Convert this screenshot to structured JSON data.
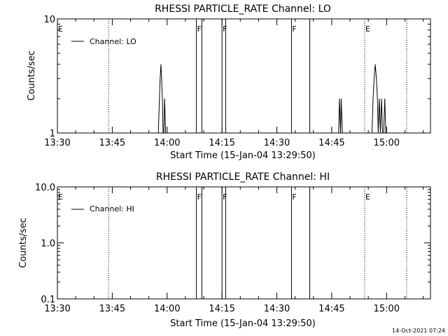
{
  "chart_data": [
    {
      "type": "line",
      "title": "RHESSI PARTICLE_RATE Channel: LO",
      "xlabel": "Start Time (15-Jan-04 13:29:50)",
      "ylabel": "Counts/sec",
      "y_scale": "log",
      "ylim": [
        1,
        10
      ],
      "y_ticks": [
        "1",
        "10"
      ],
      "x_ticks": [
        "13:30",
        "13:45",
        "14:00",
        "14:15",
        "14:30",
        "14:45",
        "15:00"
      ],
      "x_tick_minutes": [
        0,
        15,
        30,
        45,
        60,
        75,
        90
      ],
      "xlim_minutes": [
        0,
        102
      ],
      "grid": false,
      "legend": {
        "position": "top-left",
        "entries": [
          "Channel: LO"
        ]
      },
      "series": [
        {
          "name": "Channel: LO",
          "color": "#000000",
          "points": [
            [
              27.6,
              1
            ],
            [
              27.9,
              2
            ],
            [
              28.1,
              3
            ],
            [
              28.3,
              4
            ],
            [
              28.5,
              3
            ],
            [
              28.7,
              2
            ],
            [
              28.9,
              1
            ],
            [
              29.1,
              1
            ],
            [
              29.3,
              2
            ],
            [
              29.6,
              1
            ],
            [
              76.9,
              1
            ],
            [
              77.1,
              2
            ],
            [
              77.4,
              1
            ],
            [
              77.6,
              2
            ],
            [
              77.9,
              1
            ],
            [
              86.0,
              1
            ],
            [
              86.3,
              2
            ],
            [
              86.6,
              3
            ],
            [
              86.9,
              4
            ],
            [
              87.2,
              3
            ],
            [
              87.5,
              2
            ],
            [
              87.7,
              1
            ],
            [
              88.0,
              2
            ],
            [
              88.3,
              1
            ],
            [
              88.6,
              2
            ],
            [
              88.9,
              1
            ],
            [
              89.2,
              1
            ],
            [
              89.5,
              2
            ],
            [
              89.8,
              1
            ]
          ]
        }
      ],
      "annotations": [
        {
          "label": "E",
          "minute": 0
        },
        {
          "label": "F",
          "minute": 38
        },
        {
          "label": "F",
          "minute": 45
        },
        {
          "label": "F",
          "minute": 64
        },
        {
          "label": "E",
          "minute": 84
        }
      ],
      "solid_lines_minutes": [
        38,
        39.5,
        45,
        46,
        64,
        69
      ],
      "dotted_lines_minutes": [
        14,
        84,
        95.5
      ]
    },
    {
      "type": "line",
      "title": "RHESSI PARTICLE_RATE Channel: HI",
      "xlabel": "Start Time (15-Jan-04 13:29:50)",
      "ylabel": "Counts/sec",
      "y_scale": "log",
      "ylim": [
        0.1,
        10
      ],
      "y_ticks": [
        "0.1",
        "1.0",
        "10.0"
      ],
      "x_ticks": [
        "13:30",
        "13:45",
        "14:00",
        "14:15",
        "14:30",
        "14:45",
        "15:00"
      ],
      "x_tick_minutes": [
        0,
        15,
        30,
        45,
        60,
        75,
        90
      ],
      "xlim_minutes": [
        0,
        102
      ],
      "grid": false,
      "legend": {
        "position": "top-left",
        "entries": [
          "Channel: HI"
        ]
      },
      "series": [
        {
          "name": "Channel: HI",
          "color": "#000000",
          "points": []
        }
      ],
      "annotations": [
        {
          "label": "E",
          "minute": 0
        },
        {
          "label": "F",
          "minute": 38
        },
        {
          "label": "F",
          "minute": 45
        },
        {
          "label": "F",
          "minute": 64
        },
        {
          "label": "E",
          "minute": 84
        }
      ],
      "solid_lines_minutes": [
        38,
        39.5,
        45,
        46,
        64,
        69
      ],
      "dotted_lines_minutes": [
        14,
        84,
        95.5
      ]
    }
  ],
  "footer": {
    "timestamp": "14-Oct-2021 07:24"
  }
}
